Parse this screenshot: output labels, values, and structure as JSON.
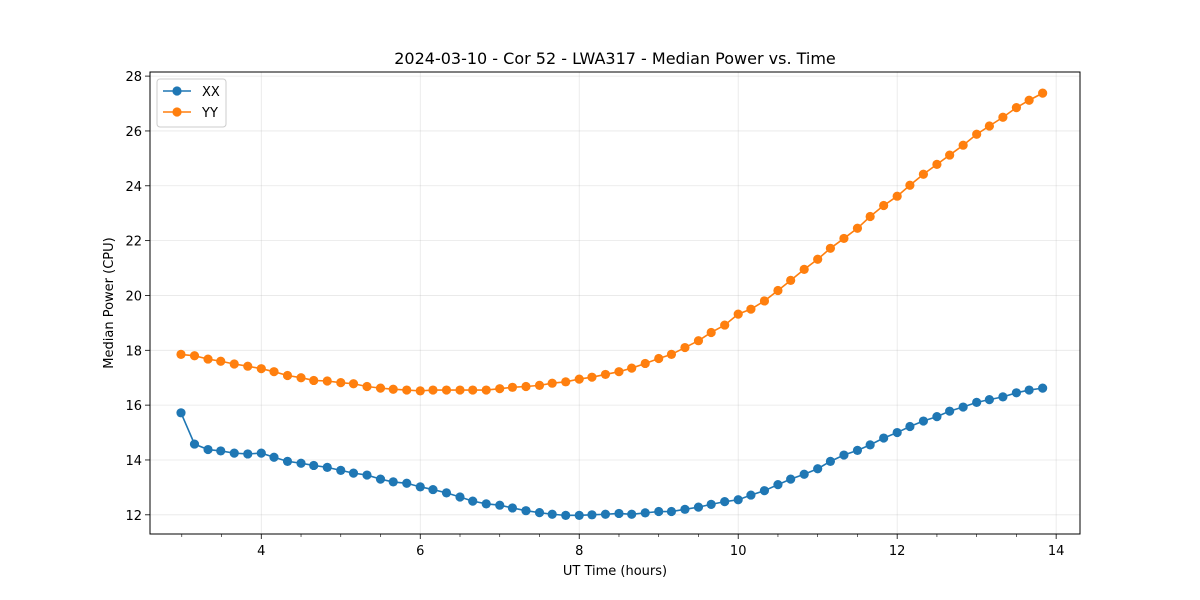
{
  "chart_data": {
    "type": "line",
    "title": "2024-03-10 - Cor 52 - LWA317 - Median Power vs. Time",
    "xlabel": "UT Time (hours)",
    "ylabel": "Median Power (CPU)",
    "xlim": [
      2.6,
      14.3
    ],
    "ylim": [
      11.3,
      28.15
    ],
    "xticks": [
      4,
      6,
      8,
      10,
      12,
      14
    ],
    "xtick_labels": [
      "4",
      "6",
      "8",
      "10",
      "12",
      "14"
    ],
    "yticks": [
      12,
      14,
      16,
      18,
      20,
      22,
      24,
      26,
      28
    ],
    "ytick_labels": [
      "12",
      "14",
      "16",
      "18",
      "20",
      "22",
      "24",
      "26",
      "28"
    ],
    "grid": true,
    "legend_position": "top-left",
    "x": [
      2.99,
      3.16,
      3.33,
      3.49,
      3.66,
      3.83,
      4.0,
      4.16,
      4.33,
      4.5,
      4.66,
      4.83,
      5.0,
      5.16,
      5.33,
      5.5,
      5.66,
      5.83,
      6.0,
      6.16,
      6.33,
      6.5,
      6.66,
      6.83,
      7.0,
      7.16,
      7.33,
      7.5,
      7.66,
      7.83,
      8.0,
      8.16,
      8.33,
      8.5,
      8.66,
      8.83,
      9.0,
      9.16,
      9.33,
      9.5,
      9.66,
      9.83,
      10.0,
      10.16,
      10.33,
      10.5,
      10.66,
      10.83,
      11.0,
      11.16,
      11.33,
      11.5,
      11.66,
      11.83,
      12.0,
      12.16,
      12.33,
      12.5,
      12.66,
      12.83,
      13.0,
      13.16,
      13.33,
      13.5,
      13.66,
      13.83
    ],
    "series": [
      {
        "name": "XX",
        "color": "#1f77b4",
        "values": [
          15.72,
          14.58,
          14.38,
          14.33,
          14.25,
          14.22,
          14.25,
          14.1,
          13.95,
          13.88,
          13.8,
          13.73,
          13.62,
          13.52,
          13.45,
          13.3,
          13.2,
          13.15,
          13.02,
          12.92,
          12.8,
          12.65,
          12.5,
          12.4,
          12.35,
          12.25,
          12.15,
          12.08,
          12.02,
          11.98,
          11.98,
          12.0,
          12.02,
          12.05,
          12.02,
          12.07,
          12.12,
          12.12,
          12.2,
          12.28,
          12.38,
          12.48,
          12.55,
          12.72,
          12.88,
          13.1,
          13.3,
          13.48,
          13.68,
          13.95,
          14.18,
          14.35,
          14.55,
          14.8,
          15.0,
          15.22,
          15.42,
          15.58,
          15.78,
          15.93,
          16.1,
          16.2,
          16.3,
          16.45,
          16.55,
          16.62
        ]
      },
      {
        "name": "YY",
        "color": "#ff7f0e",
        "values": [
          17.85,
          17.8,
          17.68,
          17.6,
          17.5,
          17.42,
          17.33,
          17.22,
          17.08,
          17.0,
          16.9,
          16.88,
          16.82,
          16.78,
          16.68,
          16.62,
          16.58,
          16.55,
          16.52,
          16.55,
          16.55,
          16.55,
          16.55,
          16.55,
          16.6,
          16.65,
          16.68,
          16.72,
          16.8,
          16.85,
          16.95,
          17.02,
          17.12,
          17.22,
          17.35,
          17.52,
          17.7,
          17.85,
          18.1,
          18.35,
          18.65,
          18.92,
          19.32,
          19.5,
          19.8,
          20.18,
          20.55,
          20.95,
          21.32,
          21.72,
          22.08,
          22.45,
          22.88,
          23.28,
          23.62,
          24.02,
          24.42,
          24.78,
          25.12,
          25.48,
          25.88,
          26.18,
          26.5,
          26.85,
          27.12,
          27.38
        ]
      }
    ]
  }
}
